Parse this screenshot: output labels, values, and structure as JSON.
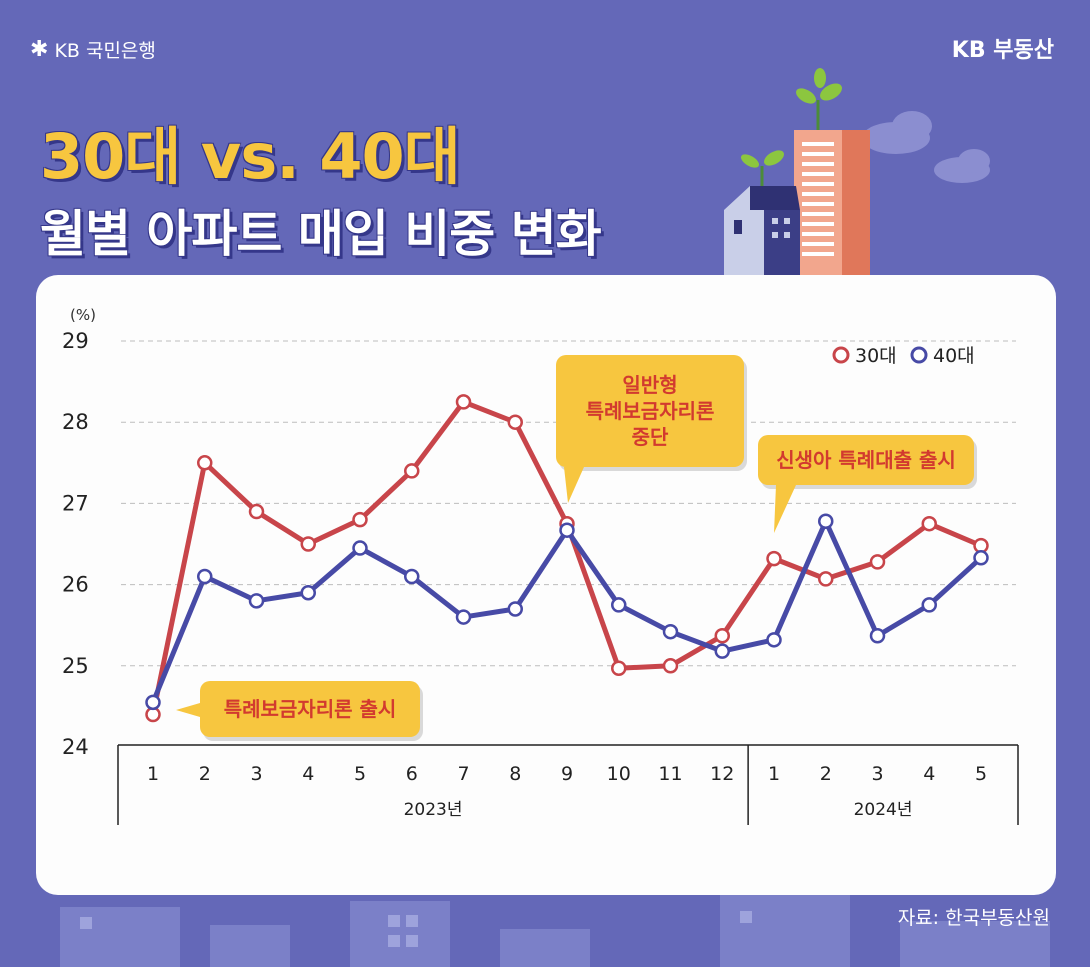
{
  "header": {
    "brand_left": "KB 국민은행",
    "brand_right": "KB 부동산",
    "title_line1": "30대 vs. 40대",
    "title_line2": "월별 아파트 매입 비중 변화"
  },
  "footer": {
    "source": "자료: 한국부동산원"
  },
  "colors": {
    "background": "#6468b8",
    "series_30s": "#c8454a",
    "series_40s": "#474aa6",
    "callout": "#f7c63f",
    "callout_text": "#d23a2f"
  },
  "chart_data": {
    "type": "line",
    "unit_label": "(%)",
    "ylim": [
      24,
      29
    ],
    "yticks": [
      "24",
      "25",
      "26",
      "27",
      "28",
      "29"
    ],
    "categories": [
      "1",
      "2",
      "3",
      "4",
      "5",
      "6",
      "7",
      "8",
      "9",
      "10",
      "11",
      "12",
      "1",
      "2",
      "3",
      "4",
      "5"
    ],
    "year_groups": [
      {
        "label": "2023년",
        "start": 0,
        "end": 11
      },
      {
        "label": "2024년",
        "start": 12,
        "end": 16
      }
    ],
    "grid": true,
    "legend_position": "top-right",
    "series": [
      {
        "name": "30대",
        "values": [
          24.4,
          27.5,
          26.9,
          26.5,
          26.8,
          27.4,
          28.25,
          28.0,
          26.75,
          24.97,
          25.0,
          25.37,
          26.32,
          26.07,
          26.28,
          26.75,
          26.48
        ]
      },
      {
        "name": "40대",
        "values": [
          24.55,
          26.1,
          25.8,
          25.9,
          26.45,
          26.1,
          25.6,
          25.7,
          26.67,
          25.75,
          25.42,
          25.18,
          25.32,
          26.78,
          25.37,
          25.75,
          26.33
        ]
      }
    ],
    "annotations": [
      {
        "text": "특례보금자리론 출시",
        "category_index": 0
      },
      {
        "text": "일반형\n특례보금자리론\n중단",
        "category_index": 8
      },
      {
        "text": "신생아 특례대출 출시",
        "category_index": 12
      }
    ]
  }
}
